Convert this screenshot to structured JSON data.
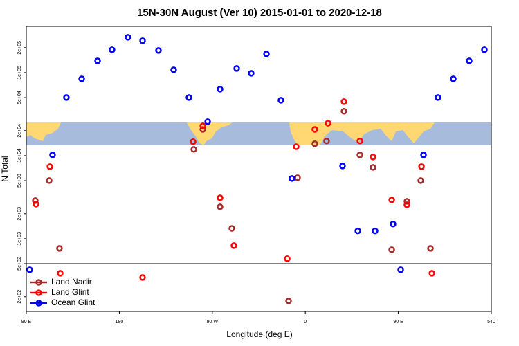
{
  "chart_data": {
    "type": "scatter",
    "title": "15N-30N August (Ver 10)   2015-01-01 to 2020-12-18",
    "x_label": "Longitude (deg E)",
    "y_label": "N Total",
    "xlim": [
      90,
      540
    ],
    "xticks": [
      {
        "value": 90,
        "label": "90 E"
      },
      180,
      {
        "value": 270,
        "label": "90 W"
      },
      {
        "value": 360,
        "label": "0"
      },
      {
        "value": 450,
        "label": "90 E"
      },
      540
    ],
    "ylim": [
      133,
      361000
    ],
    "log_y": true,
    "yticks": [
      {
        "value": 200,
        "label": "2e+02"
      },
      {
        "value": 500,
        "label": "5e+02"
      },
      {
        "value": 1000,
        "label": "1e+03"
      },
      {
        "value": 2000,
        "label": "2e+03"
      },
      {
        "value": 5000,
        "label": "5e+03"
      },
      {
        "value": 10000,
        "label": "1e+04"
      },
      {
        "value": 20000,
        "label": "2e+04"
      },
      {
        "value": 50000,
        "label": "5e+04"
      },
      {
        "value": 100000,
        "label": "1e+05"
      },
      {
        "value": 200000,
        "label": "2e+05"
      }
    ],
    "hline": 500,
    "legend": "bottom left",
    "series": [
      {
        "name": "Land Nadir",
        "color": "#a52a2a",
        "x": [
          98.7,
          112.1,
          122.1,
          252.1,
          260.8,
          277.5,
          288.9,
          343.8,
          352.5,
          369.2,
          380.6,
          397.4,
          412.8,
          425.5,
          443.6,
          458.3,
          471.7,
          481.1
        ],
        "values": [
          2870,
          5010,
          765,
          11900,
          20700,
          2420,
          1330,
          178,
          5410,
          13900,
          15000,
          34200,
          10200,
          7220,
          735,
          2820,
          5010,
          765
        ]
      },
      {
        "name": "Land Glint",
        "color": "#ff0000",
        "x": [
          99.4,
          112.8,
          122.8,
          202.5,
          251.4,
          260.8,
          277.5,
          290.9,
          342.5,
          351.2,
          369.2,
          382,
          397.4,
          412.8,
          425.5,
          443.6,
          458.3,
          472.4,
          482.5
        ],
        "values": [
          2610,
          7360,
          383,
          341,
          14700,
          22800,
          3100,
          826,
          573,
          12800,
          20700,
          24600,
          44700,
          15000,
          9620,
          2930,
          2560,
          7360,
          383
        ]
      },
      {
        "name": "Ocean Glint",
        "color": "#0000ff",
        "x": [
          93.3,
          115.4,
          128.8,
          143.6,
          159,
          173,
          188.4,
          202.5,
          217.9,
          232.6,
          247.4,
          265.5,
          277.5,
          293.6,
          307.6,
          322.4,
          336.4,
          347.1,
          396,
          410.8,
          427.5,
          444.9,
          452.3,
          474.4,
          488.4,
          503.2,
          518.6,
          533.3
        ],
        "values": [
          422,
          10200,
          50100,
          84100,
          138700,
          188400,
          266000,
          241700,
          184900,
          108000,
          50100,
          25600,
          63100,
          112200,
          98100,
          167900,
          46400,
          5310,
          7500,
          1240,
          1240,
          1500,
          422,
          10200,
          50100,
          84100,
          138700,
          188400
        ]
      }
    ]
  }
}
